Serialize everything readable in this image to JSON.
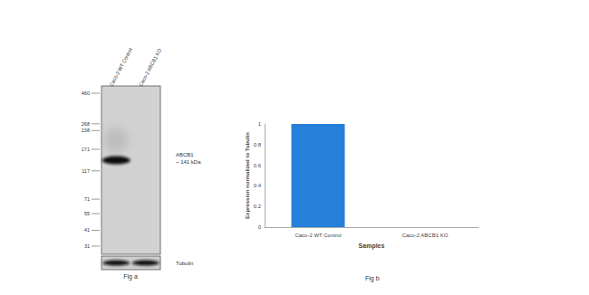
{
  "chart_data": {
    "type": "bar",
    "title": "Fig b",
    "categories": [
      "Caco-2 WT Control",
      "Caco-2 ABCB1 KO"
    ],
    "values": [
      1,
      0
    ],
    "color": "#2680d9",
    "ylim": [
      0,
      1
    ],
    "yticks": [
      0,
      0.2,
      0.4,
      0.6,
      0.8,
      1
    ],
    "ylabel": "Expression normalized to Tubulin",
    "xlabel": "Samples",
    "grid": false
  },
  "blot": {
    "caption": "Fig a",
    "lanes": [
      {
        "label": "Caco-2 WT Control",
        "abcb1": 1,
        "tubulin": 1
      },
      {
        "label": "Caco-2 ABCB1 KO",
        "abcb1": 0,
        "tubulin": 1
      }
    ],
    "markers": [
      460,
      268,
      238,
      171,
      117,
      71,
      55,
      41,
      31
    ],
    "target": "ABCB1",
    "target_size": "~ 141 kDa",
    "target_kda": 141,
    "loading_control": "Tubulin"
  }
}
